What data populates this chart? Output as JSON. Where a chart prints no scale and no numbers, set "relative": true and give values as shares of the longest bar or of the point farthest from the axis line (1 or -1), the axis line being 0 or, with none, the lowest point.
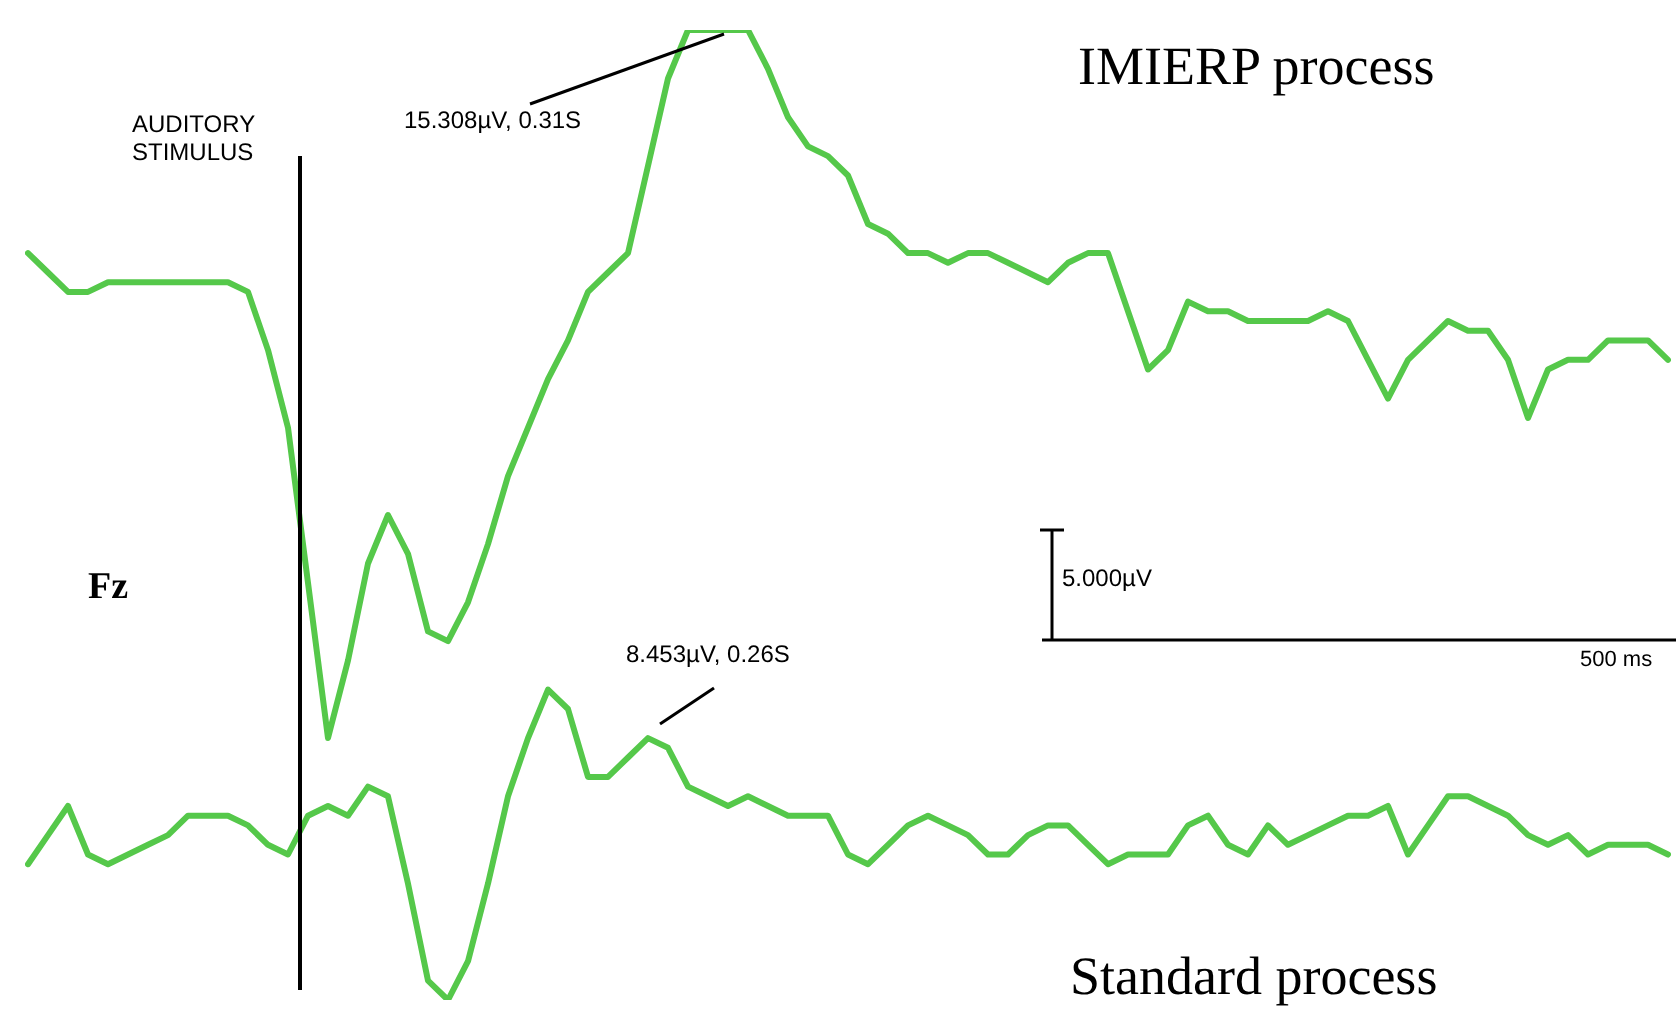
{
  "chart_data": {
    "type": "line",
    "relative": true,
    "legend": false,
    "marker": "none",
    "line_style": "solid",
    "categories": [
      null,
      null,
      null,
      null,
      null,
      null,
      null,
      null,
      null,
      null,
      null,
      null,
      null,
      null,
      null,
      null,
      null,
      null,
      null,
      null,
      null,
      null,
      null,
      null,
      null,
      null,
      null,
      null,
      null,
      null,
      null,
      null,
      null,
      null,
      null,
      null,
      null,
      null,
      null,
      null,
      null,
      null,
      null,
      null,
      null,
      null,
      null,
      null,
      null,
      null,
      null,
      null,
      null,
      null,
      null,
      null,
      null,
      null,
      null,
      null,
      null,
      null,
      null,
      null,
      null,
      null,
      null,
      null,
      null,
      null,
      null,
      null,
      null,
      null,
      null,
      null,
      null,
      null,
      null,
      null,
      null,
      null,
      null
    ],
    "series": [
      {
        "name": "IMIERP process",
        "color": "#55c84a",
        "values": [
          0.77,
          0.75,
          0.73,
          0.73,
          0.74,
          0.74,
          0.74,
          0.74,
          0.74,
          0.74,
          0.74,
          0.73,
          0.67,
          0.59,
          0.43,
          0.27,
          0.35,
          0.45,
          0.5,
          0.46,
          0.38,
          0.37,
          0.41,
          0.47,
          0.54,
          0.59,
          0.64,
          0.68,
          0.73,
          0.75,
          0.77,
          0.86,
          0.95,
          1.0,
          1.0,
          1.0,
          1.0,
          0.96,
          0.91,
          0.88,
          0.87,
          0.85,
          0.8,
          0.79,
          0.77,
          0.77,
          0.76,
          0.77,
          0.77,
          0.76,
          0.75,
          0.74,
          0.76,
          0.77,
          0.77,
          0.71,
          0.65,
          0.67,
          0.72,
          0.71,
          0.71,
          0.7,
          0.7,
          0.7,
          0.7,
          0.71,
          0.7,
          0.66,
          0.62,
          0.66,
          0.68,
          0.7,
          0.69,
          0.69,
          0.66,
          0.6,
          0.65,
          0.66,
          0.66,
          0.68,
          0.68,
          0.68,
          0.66
        ]
      },
      {
        "name": "Standard process",
        "color": "#55c84a",
        "values": [
          0.14,
          0.17,
          0.2,
          0.15,
          0.14,
          0.15,
          0.16,
          0.17,
          0.19,
          0.19,
          0.19,
          0.18,
          0.16,
          0.15,
          0.19,
          0.2,
          0.19,
          0.22,
          0.21,
          0.12,
          0.02,
          0,
          0.04,
          0.12,
          0.21,
          0.27,
          0.32,
          0.3,
          0.23,
          0.23,
          0.25,
          0.27,
          0.26,
          0.22,
          0.21,
          0.2,
          0.21,
          0.2,
          0.19,
          0.19,
          0.19,
          0.15,
          0.14,
          0.16,
          0.18,
          0.19,
          0.18,
          0.17,
          0.15,
          0.15,
          0.17,
          0.18,
          0.18,
          0.16,
          0.14,
          0.15,
          0.15,
          0.15,
          0.18,
          0.19,
          0.16,
          0.15,
          0.18,
          0.16,
          0.17,
          0.18,
          0.19,
          0.19,
          0.2,
          0.15,
          0.18,
          0.21,
          0.21,
          0.2,
          0.19,
          0.17,
          0.16,
          0.17,
          0.15,
          0.16,
          0.16,
          0.16,
          0.15
        ]
      }
    ],
    "annotations": [
      "AUDITORY STIMULUS",
      "15.308µV, 0.31S",
      "8.453µV, 0.26S",
      "Fz",
      "5.000µV",
      "500 ms"
    ]
  }
}
